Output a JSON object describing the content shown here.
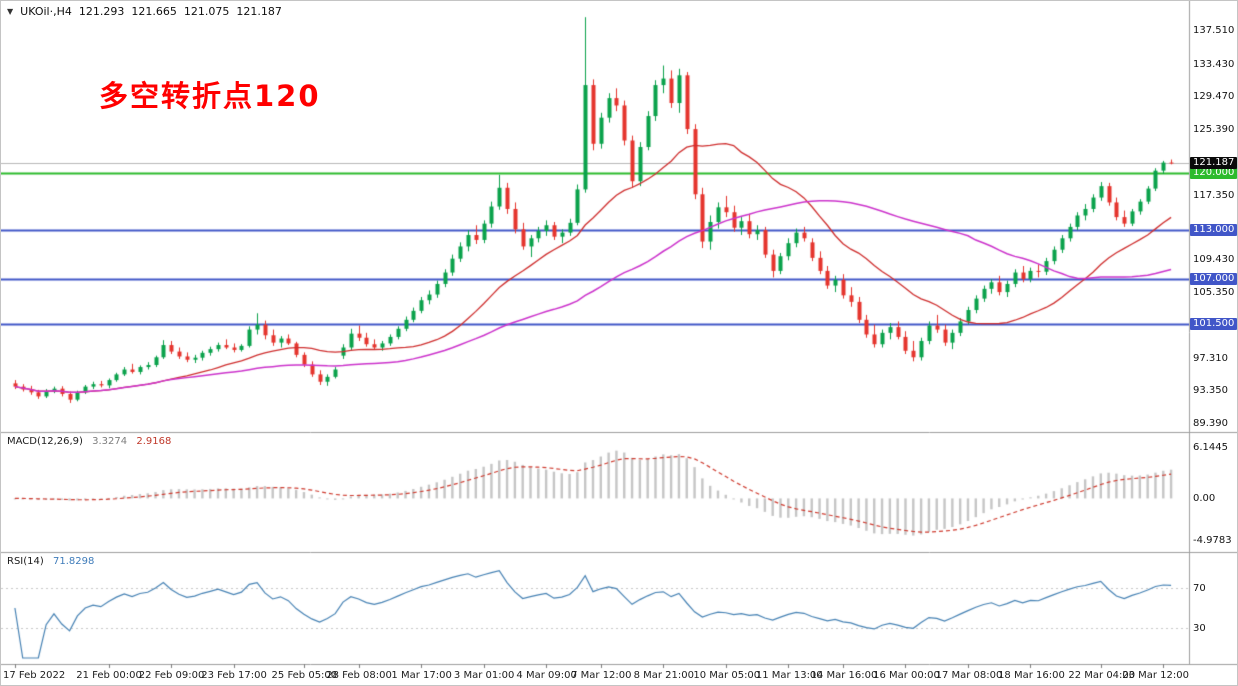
{
  "window": {
    "symbol": "UKOil·,H4",
    "ohlc": {
      "open": "121.293",
      "high": "121.665",
      "low": "121.075",
      "close": "121.187"
    }
  },
  "annotation": {
    "text": "多空转折点120",
    "color": "#ff0000"
  },
  "chart_data": {
    "type": "candlestick",
    "symbol": "UKOil",
    "timeframe": "H4",
    "title": "UKOil H4 chart with MACD(12,26,9) and RSI(14)",
    "grid": false,
    "price_range": [
      88.6,
      139.4
    ],
    "colors": {
      "up": "#0ba24c",
      "down": "#e5352e",
      "ma_fast": "#cf2e2e",
      "ma_slow": "#cc33cc",
      "level_green": "#2cbb2c",
      "level_blue": "#4156c8",
      "current_box": "#0a0a0a",
      "current_line": "#b8b8b8",
      "macd_hist": "#c6c6c6",
      "macd_signal": "#cf3b2f",
      "rsi_line": "#4682b4"
    },
    "moving_averages": [
      {
        "name": "ma-fast-red",
        "period": 20
      },
      {
        "name": "ma-slow-magenta",
        "period": 50
      }
    ],
    "levels": [
      {
        "price": 120.0,
        "label": "120.000",
        "type": "green"
      },
      {
        "price": 113.0,
        "label": "113.000",
        "type": "blue"
      },
      {
        "price": 107.0,
        "label": "107.000",
        "type": "blue"
      },
      {
        "price": 101.5,
        "label": "101.500",
        "type": "blue"
      }
    ],
    "current_price": {
      "value": 121.187,
      "label": "121.187"
    },
    "price_axis_labels": [
      {
        "text": "137.510",
        "value": 137.51
      },
      {
        "text": "133.430",
        "value": 133.43
      },
      {
        "text": "129.470",
        "value": 129.47
      },
      {
        "text": "125.390",
        "value": 125.39
      },
      {
        "text": "117.350",
        "value": 117.35
      },
      {
        "text": "109.430",
        "value": 109.43
      },
      {
        "text": "105.350",
        "value": 105.35
      },
      {
        "text": "97.310",
        "value": 97.31
      },
      {
        "text": "93.350",
        "value": 93.35
      },
      {
        "text": "89.390",
        "value": 89.39
      }
    ],
    "time_labels": [
      {
        "text": "17 Feb 2022",
        "bar": 0
      },
      {
        "text": "21 Feb 00:00",
        "bar": 12
      },
      {
        "text": "22 Feb 09:00",
        "bar": 20
      },
      {
        "text": "23 Feb 17:00",
        "bar": 28
      },
      {
        "text": "25 Feb 05:00",
        "bar": 37
      },
      {
        "text": "28 Feb 08:00",
        "bar": 44
      },
      {
        "text": "1 Mar 17:00",
        "bar": 52
      },
      {
        "text": "3 Mar 01:00",
        "bar": 60
      },
      {
        "text": "4 Mar 09:00",
        "bar": 68
      },
      {
        "text": "7 Mar 12:00",
        "bar": 75
      },
      {
        "text": "8 Mar 21:00",
        "bar": 83
      },
      {
        "text": "10 Mar 05:00",
        "bar": 91
      },
      {
        "text": "11 Mar 13:00",
        "bar": 99
      },
      {
        "text": "14 Mar 16:00",
        "bar": 106
      },
      {
        "text": "16 Mar 00:00",
        "bar": 114
      },
      {
        "text": "17 Mar 08:00",
        "bar": 122
      },
      {
        "text": "18 Mar 16:00",
        "bar": 130
      },
      {
        "text": "22 Mar 04:00",
        "bar": 139
      },
      {
        "text": "23 Mar 12:00",
        "bar": 147
      }
    ],
    "candles": [
      [
        94.2,
        94.6,
        93.5,
        93.8
      ],
      [
        93.8,
        94.1,
        93.2,
        93.45
      ],
      [
        93.45,
        93.9,
        92.8,
        93.1
      ],
      [
        93.1,
        93.4,
        92.3,
        92.6
      ],
      [
        92.6,
        93.5,
        92.4,
        93.2
      ],
      [
        93.2,
        93.8,
        93.0,
        93.55
      ],
      [
        93.55,
        93.85,
        92.6,
        92.9
      ],
      [
        92.9,
        93.2,
        91.8,
        92.2
      ],
      [
        92.2,
        93.3,
        92.0,
        93.1
      ],
      [
        93.1,
        94.0,
        92.9,
        93.8
      ],
      [
        93.8,
        94.4,
        93.5,
        94.1
      ],
      [
        94.1,
        94.5,
        93.7,
        93.95
      ],
      [
        93.95,
        94.8,
        93.6,
        94.6
      ],
      [
        94.6,
        95.5,
        94.4,
        95.3
      ],
      [
        95.3,
        96.2,
        95.1,
        95.9
      ],
      [
        95.9,
        96.6,
        95.4,
        95.6
      ],
      [
        95.6,
        96.4,
        95.3,
        96.2
      ],
      [
        96.2,
        96.8,
        95.9,
        96.45
      ],
      [
        96.45,
        97.6,
        96.2,
        97.4
      ],
      [
        97.4,
        99.5,
        97.2,
        98.9
      ],
      [
        98.9,
        99.4,
        97.8,
        98.1
      ],
      [
        98.1,
        98.6,
        97.2,
        97.5
      ],
      [
        97.5,
        98.0,
        96.8,
        97.1
      ],
      [
        97.1,
        97.7,
        96.7,
        97.35
      ],
      [
        97.35,
        98.2,
        97.0,
        97.95
      ],
      [
        97.95,
        98.7,
        97.6,
        98.4
      ],
      [
        98.4,
        99.2,
        98.1,
        98.9
      ],
      [
        98.9,
        99.6,
        98.4,
        98.6
      ],
      [
        98.6,
        99.1,
        98.0,
        98.3
      ],
      [
        98.3,
        99.0,
        98.1,
        98.8
      ],
      [
        98.8,
        101.2,
        98.6,
        100.8
      ],
      [
        100.8,
        102.8,
        100.2,
        101.4
      ],
      [
        101.4,
        101.9,
        99.6,
        100.1
      ],
      [
        100.1,
        100.8,
        98.8,
        99.2
      ],
      [
        99.2,
        100.0,
        98.6,
        99.7
      ],
      [
        99.7,
        100.2,
        98.9,
        99.1
      ],
      [
        99.1,
        99.3,
        97.4,
        97.7
      ],
      [
        97.7,
        98.0,
        96.2,
        96.5
      ],
      [
        96.5,
        96.9,
        95.0,
        95.3
      ],
      [
        95.3,
        95.8,
        94.0,
        94.4
      ],
      [
        94.4,
        95.3,
        93.9,
        95.0
      ],
      [
        95.0,
        96.2,
        94.8,
        95.9
      ],
      [
        97.6,
        99.0,
        97.2,
        98.6
      ],
      [
        98.6,
        100.9,
        98.3,
        100.3
      ],
      [
        100.3,
        101.3,
        99.4,
        99.8
      ],
      [
        99.8,
        100.4,
        98.7,
        99.0
      ],
      [
        99.0,
        99.6,
        98.3,
        98.6
      ],
      [
        98.6,
        99.4,
        98.2,
        99.1
      ],
      [
        99.1,
        100.2,
        98.8,
        99.9
      ],
      [
        99.9,
        101.2,
        99.6,
        100.9
      ],
      [
        100.9,
        102.4,
        100.6,
        102.0
      ],
      [
        102.0,
        103.5,
        101.7,
        103.1
      ],
      [
        103.1,
        104.8,
        102.8,
        104.4
      ],
      [
        104.4,
        105.6,
        103.9,
        105.1
      ],
      [
        105.1,
        106.8,
        104.7,
        106.4
      ],
      [
        106.4,
        108.2,
        106.0,
        107.8
      ],
      [
        107.8,
        110.0,
        107.4,
        109.5
      ],
      [
        109.5,
        111.5,
        109.1,
        111.0
      ],
      [
        111.0,
        113.0,
        110.4,
        112.4
      ],
      [
        112.4,
        113.6,
        111.3,
        111.8
      ],
      [
        111.8,
        114.2,
        111.4,
        113.8
      ],
      [
        113.8,
        116.5,
        113.3,
        115.9
      ],
      [
        115.9,
        119.8,
        115.5,
        118.2
      ],
      [
        118.2,
        118.8,
        115.0,
        115.6
      ],
      [
        115.6,
        116.4,
        112.6,
        113.1
      ],
      [
        113.1,
        113.9,
        110.6,
        111.0
      ],
      [
        111.0,
        112.4,
        109.7,
        112.0
      ],
      [
        112.0,
        113.4,
        111.5,
        112.9
      ],
      [
        112.9,
        114.2,
        112.3,
        113.6
      ],
      [
        113.6,
        114.0,
        111.8,
        112.2
      ],
      [
        112.2,
        113.1,
        111.4,
        112.7
      ],
      [
        112.7,
        114.4,
        112.3,
        113.9
      ],
      [
        113.9,
        118.6,
        113.6,
        118.0
      ],
      [
        118.0,
        139.13,
        117.6,
        130.8
      ],
      [
        130.8,
        131.5,
        122.8,
        123.6
      ],
      [
        123.6,
        127.4,
        123.0,
        126.8
      ],
      [
        126.8,
        129.8,
        126.2,
        129.2
      ],
      [
        129.2,
        130.4,
        127.6,
        128.3
      ],
      [
        128.3,
        128.9,
        123.4,
        124.0
      ],
      [
        124.0,
        124.6,
        118.2,
        119.0
      ],
      [
        119.0,
        123.8,
        118.4,
        123.2
      ],
      [
        123.2,
        127.6,
        122.8,
        127.0
      ],
      [
        127.0,
        131.4,
        126.4,
        130.8
      ],
      [
        130.8,
        133.2,
        129.8,
        131.6
      ],
      [
        131.6,
        132.6,
        128.0,
        128.6
      ],
      [
        128.6,
        132.8,
        127.4,
        132.0
      ],
      [
        132.0,
        132.4,
        124.8,
        125.4
      ],
      [
        125.4,
        126.0,
        116.8,
        117.4
      ],
      [
        117.4,
        118.2,
        110.8,
        111.6
      ],
      [
        111.6,
        114.8,
        110.6,
        114.0
      ],
      [
        114.0,
        116.4,
        113.2,
        115.8
      ],
      [
        115.8,
        117.2,
        114.6,
        115.2
      ],
      [
        115.2,
        116.0,
        112.8,
        113.3
      ],
      [
        113.3,
        114.6,
        112.4,
        114.1
      ],
      [
        114.1,
        115.0,
        112.0,
        112.5
      ],
      [
        112.5,
        113.6,
        111.8,
        113.0
      ],
      [
        113.0,
        113.4,
        109.6,
        110.0
      ],
      [
        110.0,
        110.6,
        107.2,
        108.0
      ],
      [
        108.0,
        110.2,
        107.6,
        109.8
      ],
      [
        109.8,
        112.0,
        109.3,
        111.4
      ],
      [
        111.4,
        113.2,
        110.9,
        112.7
      ],
      [
        112.7,
        113.4,
        111.6,
        112.0
      ],
      [
        111.5,
        112.0,
        109.2,
        109.6
      ],
      [
        109.6,
        110.4,
        107.6,
        108.0
      ],
      [
        108.0,
        108.6,
        105.8,
        106.2
      ],
      [
        106.2,
        107.4,
        105.4,
        106.9
      ],
      [
        106.9,
        107.6,
        104.6,
        105.0
      ],
      [
        105.0,
        106.0,
        103.6,
        104.2
      ],
      [
        104.2,
        104.8,
        101.6,
        102.0
      ],
      [
        102.0,
        102.6,
        99.8,
        100.2
      ],
      [
        100.2,
        101.4,
        98.6,
        99.0
      ],
      [
        99.0,
        100.8,
        98.6,
        100.4
      ],
      [
        100.4,
        101.6,
        99.6,
        101.1
      ],
      [
        101.1,
        101.8,
        99.6,
        99.9
      ],
      [
        99.9,
        100.6,
        97.8,
        98.2
      ],
      [
        98.2,
        99.4,
        96.9,
        97.4
      ],
      [
        97.4,
        99.8,
        97.0,
        99.4
      ],
      [
        99.4,
        101.8,
        99.0,
        101.3
      ],
      [
        101.3,
        102.6,
        100.4,
        100.8
      ],
      [
        100.8,
        101.4,
        98.8,
        99.2
      ],
      [
        99.2,
        100.8,
        98.4,
        100.4
      ],
      [
        100.4,
        102.2,
        100.0,
        101.8
      ],
      [
        101.8,
        103.6,
        101.4,
        103.2
      ],
      [
        103.2,
        105.0,
        102.8,
        104.6
      ],
      [
        104.6,
        106.2,
        104.2,
        105.8
      ],
      [
        105.8,
        107.0,
        105.2,
        106.6
      ],
      [
        106.6,
        107.4,
        105.0,
        105.4
      ],
      [
        105.4,
        106.8,
        104.8,
        106.4
      ],
      [
        106.4,
        108.2,
        106.0,
        107.8
      ],
      [
        107.8,
        108.6,
        106.6,
        107.0
      ],
      [
        107.0,
        108.4,
        106.6,
        108.0
      ],
      [
        108.0,
        108.8,
        107.2,
        107.9
      ],
      [
        107.9,
        109.6,
        107.5,
        109.2
      ],
      [
        109.2,
        111.0,
        108.8,
        110.6
      ],
      [
        110.6,
        112.4,
        110.2,
        112.0
      ],
      [
        112.0,
        113.8,
        111.6,
        113.4
      ],
      [
        113.4,
        115.2,
        113.0,
        114.8
      ],
      [
        114.8,
        116.2,
        114.2,
        115.6
      ],
      [
        115.6,
        117.4,
        115.2,
        117.0
      ],
      [
        117.0,
        118.9,
        116.6,
        118.4
      ],
      [
        118.4,
        118.8,
        116.0,
        116.4
      ],
      [
        116.4,
        117.0,
        114.2,
        114.6
      ],
      [
        114.6,
        115.4,
        113.4,
        113.8
      ],
      [
        113.8,
        115.6,
        113.5,
        115.3
      ],
      [
        115.3,
        116.8,
        114.9,
        116.5
      ],
      [
        116.5,
        118.4,
        116.2,
        118.1
      ],
      [
        118.1,
        120.6,
        117.8,
        120.3
      ],
      [
        120.3,
        121.5,
        119.9,
        121.29
      ],
      [
        121.293,
        121.665,
        121.075,
        121.187
      ]
    ],
    "macd": {
      "label": "MACD(12,26,9)",
      "fast": 12,
      "slow": 26,
      "signal": 9,
      "value_main": "3.3274",
      "value_signal": "2.9168",
      "range": [
        -5.7,
        7.0
      ],
      "axis_labels": [
        {
          "text": "6.1445",
          "value": 6.1445
        },
        {
          "text": "0.00",
          "value": 0
        },
        {
          "text": "-4.9783",
          "value": -4.9783
        }
      ]
    },
    "rsi": {
      "label": "RSI(14)",
      "period": 14,
      "value": "71.8298",
      "range": [
        0,
        100
      ],
      "levels": [
        70,
        30
      ],
      "axis_labels": [
        {
          "text": "70",
          "value": 70
        },
        {
          "text": "30",
          "value": 30
        }
      ]
    }
  }
}
